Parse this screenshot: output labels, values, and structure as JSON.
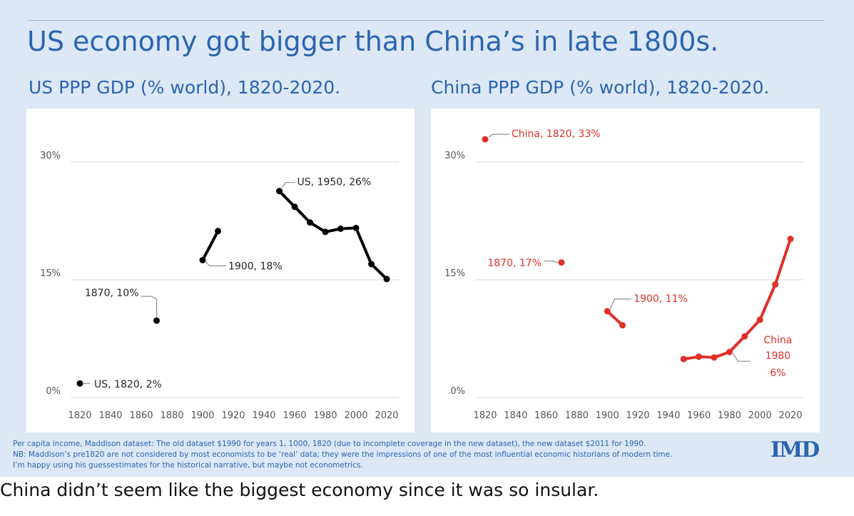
{
  "headline": "US economy got bigger than China’s in late 1800s.",
  "caption": "China didn’t seem like the biggest economy since it was so insular.",
  "logo_text": "IMD",
  "colors": {
    "us": "#000000",
    "china": "#e0302a",
    "accent": "#2c64b0",
    "grid": "#d9d9d9"
  },
  "footnotes": [
    "Per capita income, Maddison dataset: The old dataset $1990 for years 1, 1000, 1820 (due to incomplete coverage in the new dataset), the new dataset $2011 for 1990.",
    "NB: Maddison’s pre1820 are not considered by most economists to be ‘real’ data; they were the impressions of one of the most influential economic historians of modern time.",
    "I’m happy using his guessestimates for the historical narrative, but maybe not econometrics."
  ],
  "chart_data": [
    {
      "type": "line",
      "title": "US PPP GDP (% world), 1820-2020.",
      "xlabel": "",
      "ylabel": "",
      "xlim": [
        1820,
        2020
      ],
      "ylim": [
        0,
        30
      ],
      "x_ticks": [
        "1820",
        "1840",
        "1860",
        "1880",
        "1900",
        "1920",
        "1940",
        "1960",
        "1980",
        "2000",
        "2020"
      ],
      "y_ticks": [
        "0%",
        "15%",
        "30%"
      ],
      "grid": true,
      "series": [
        {
          "name": "US",
          "segments": [
            [
              [
                1820,
                1.8
              ]
            ],
            [
              [
                1870,
                9.8
              ]
            ],
            [
              [
                1900,
                17.5
              ],
              [
                1910,
                21.2
              ]
            ],
            [
              [
                1950,
                26.3
              ],
              [
                1960,
                24.3
              ],
              [
                1970,
                22.3
              ],
              [
                1980,
                21.1
              ],
              [
                1990,
                21.5
              ],
              [
                2000,
                21.6
              ],
              [
                2010,
                17.0
              ],
              [
                2020,
                15.1
              ]
            ]
          ]
        }
      ],
      "annotations": [
        {
          "text": "US, 1820, 2%",
          "x": 1820,
          "y": 1.8
        },
        {
          "text": "1870, 10%",
          "x": 1870,
          "y": 9.8
        },
        {
          "text": "1900, 18%",
          "x": 1900,
          "y": 17.5
        },
        {
          "text": "US, 1950, 26%",
          "x": 1950,
          "y": 26.3
        }
      ]
    },
    {
      "type": "line",
      "title": "China PPP GDP (% world), 1820-2020.",
      "xlabel": "",
      "ylabel": "",
      "xlim": [
        1820,
        2020
      ],
      "ylim": [
        0,
        30
      ],
      "x_ticks": [
        "1820",
        "1840",
        "1860",
        "1880",
        "1900",
        "1920",
        "1940",
        "1960",
        "1980",
        "2000",
        "2020"
      ],
      "y_ticks": [
        "0%",
        "15%",
        "30%"
      ],
      "grid": true,
      "series": [
        {
          "name": "China",
          "segments": [
            [
              [
                1820,
                32.9
              ]
            ],
            [
              [
                1870,
                17.2
              ]
            ],
            [
              [
                1900,
                11.0
              ],
              [
                1910,
                9.2
              ]
            ],
            [
              [
                1950,
                4.9
              ],
              [
                1960,
                5.2
              ],
              [
                1970,
                5.1
              ],
              [
                1980,
                5.8
              ],
              [
                1990,
                7.8
              ],
              [
                2000,
                9.9
              ],
              [
                2010,
                14.4
              ],
              [
                2020,
                20.2
              ]
            ]
          ]
        }
      ],
      "annotations": [
        {
          "text": "China, 1820, 33%",
          "x": 1820,
          "y": 32.9
        },
        {
          "text": "1870, 17%",
          "x": 1870,
          "y": 17.2
        },
        {
          "text": "1900, 11%",
          "x": 1900,
          "y": 11.0
        },
        {
          "text": "China",
          "x": 1980,
          "y": 5.8
        },
        {
          "text": "1980",
          "x": 1980,
          "y": 5.8
        },
        {
          "text": "6%",
          "x": 1980,
          "y": 5.8
        }
      ]
    }
  ]
}
